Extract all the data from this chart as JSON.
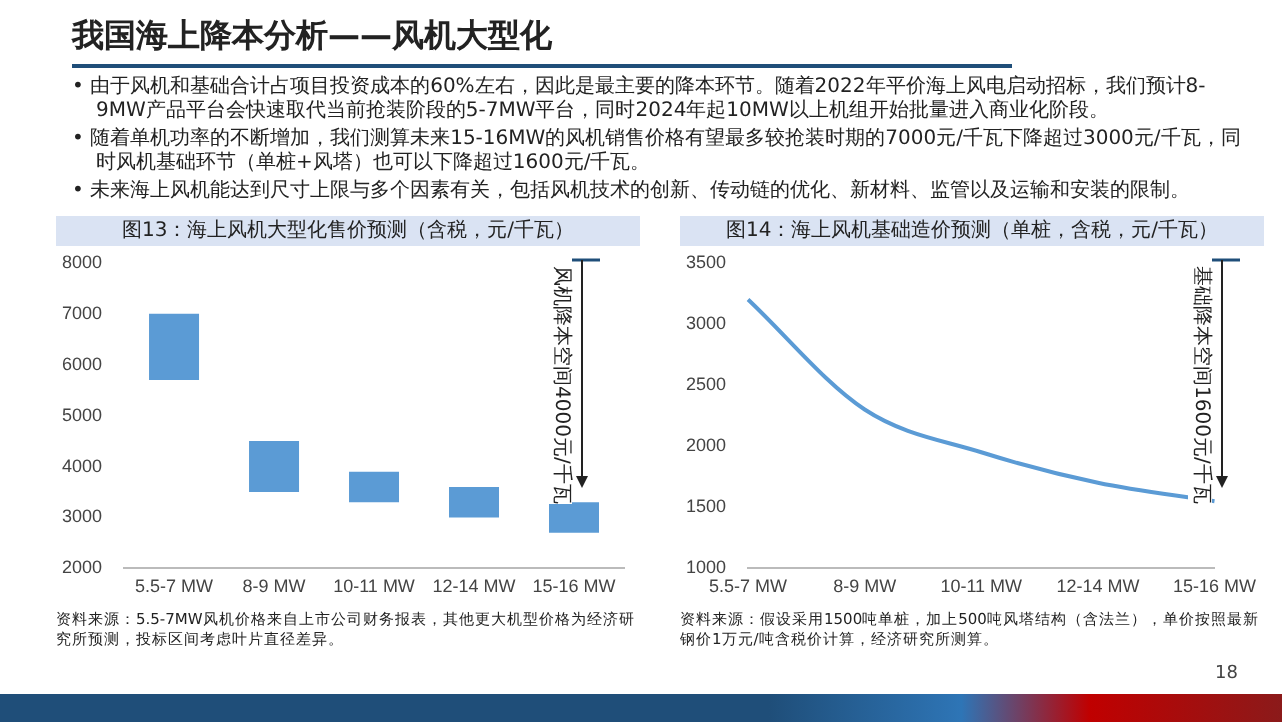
{
  "chart_data": [
    {
      "type": "bar",
      "title": "图13：海上风机大型化售价预测（含税，元/千瓦）",
      "categories": [
        "5.5-7 MW",
        "8-9 MW",
        "10-11 MW",
        "12-14 MW",
        "15-16 MW"
      ],
      "base": [
        5700,
        3500,
        3300,
        3000,
        2700
      ],
      "values": [
        1300,
        1000,
        600,
        600,
        600
      ],
      "color": "#5b9bd5",
      "ylim": [
        2000,
        8000
      ],
      "yticks": [
        2000,
        3000,
        4000,
        5000,
        6000,
        7000,
        8000
      ],
      "grid": false,
      "annotations": [
        "我国海上降本分析——风机大型化",
        "• 由于风机和基础合计占项目投资成本的60%左右，因此是最主要的降本环节。随着2022年平价海上风电启动招标，我们预计8-9MW产品平台会快速取代当前抢装阶段的5-7MW平台，同时2024年起10MW以上机组开始批量进入商业化阶段。",
        "• 随着单机功率的不断增加，我们测算未来15-16MW的风机销售价格有望最多较抢装时期的7000元/千瓦下降超过3000元/千瓦，同时风机基础环节（单桩+风塔）也可以下降超过1600元/千瓦。",
        "• 未来海上风机能达到尺寸上限与多个因素有关，包括风机技术的创新、传动链的优化、新材料、监管以及运输和安装的限制。",
        "风机降本空间4000元/千瓦",
        "资料来源：5.5-7MW风机价格来自上市公司财务报表，其他更大机型价格为经济研究所预测，投标区间考虑叶片直径差异。",
        "18"
      ]
    },
    {
      "type": "line",
      "title": "图14：海上风机基础造价预测（单桩，含税，元/千瓦）",
      "categories": [
        "5.5-7 MW",
        "8-9 MW",
        "10-11 MW",
        "12-14 MW",
        "15-16 MW"
      ],
      "values": [
        3200,
        2300,
        1950,
        1700,
        1550
      ],
      "color": "#5b9bd5",
      "marker": "none",
      "ylim": [
        1000,
        3500
      ],
      "yticks": [
        1000,
        1500,
        2000,
        2500,
        3000,
        3500
      ],
      "grid": false,
      "annotations": [
        "基础降本空间1600元/千瓦",
        "资料来源：假设采用1500吨单桩，加上500吨风塔结构（含法兰），单价按照最新钢价1万元/吨含税价计算，经济研究所测算。"
      ]
    }
  ]
}
